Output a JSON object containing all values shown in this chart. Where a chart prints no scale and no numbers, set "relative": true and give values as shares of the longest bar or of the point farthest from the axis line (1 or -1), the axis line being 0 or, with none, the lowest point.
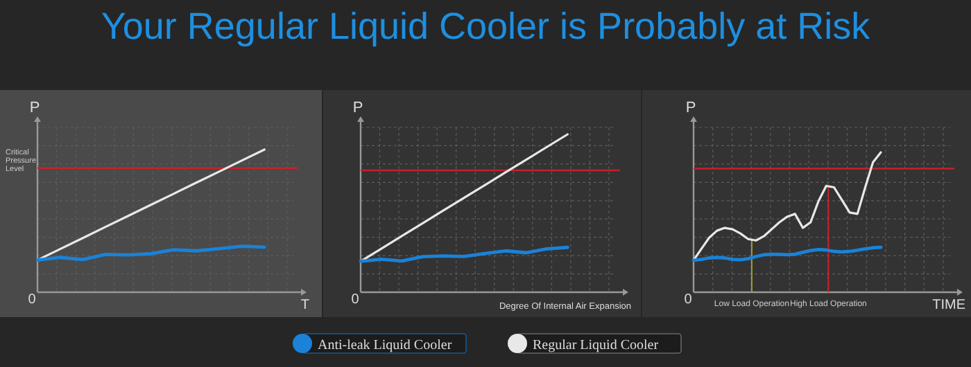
{
  "chart_data": [
    {
      "type": "line",
      "relative": true,
      "ylabel": "P",
      "xlabel": "T",
      "grid": true,
      "legend": false,
      "annotations": [
        "0"
      ],
      "categories": [
        null,
        null,
        null,
        null,
        null,
        null,
        null,
        null,
        null,
        null,
        null,
        null
      ],
      "ref_lines": [
        {
          "axis": "y",
          "value": 0.87,
          "label": "Critical Pressure Level",
          "color": "#c8202a"
        }
      ],
      "series": [
        {
          "color": "#e8e8e8",
          "values": [
            0.225,
            0.303,
            0.38,
            0.458,
            0.535,
            0.613,
            0.69,
            0.768,
            0.845,
            0.923,
            1,
            null
          ]
        },
        {
          "color": "#1a82d8",
          "values": [
            0.225,
            0.244,
            0.229,
            0.265,
            0.262,
            0.27,
            0.298,
            0.29,
            0.305,
            0.322,
            0.316,
            null
          ]
        }
      ]
    },
    {
      "type": "line",
      "relative": true,
      "title": "Your Regular Liquid Cooler is Probably at Risk",
      "ylabel": "P",
      "xlabel": "Degree Of Internal Air Expansion",
      "grid": true,
      "legend": "bottom",
      "annotations": [
        "0"
      ],
      "categories": [
        null,
        null,
        null,
        null,
        null,
        null,
        null,
        null,
        null,
        null,
        null,
        null,
        null
      ],
      "ref_lines": [
        {
          "axis": "y",
          "value": 0.772,
          "color": "#c8202a"
        }
      ],
      "series": [
        {
          "name": "Regular Liquid Cooler",
          "color": "#e8e8e8",
          "values": [
            0.196,
            0.276,
            0.357,
            0.437,
            0.518,
            0.598,
            0.678,
            0.759,
            0.839,
            0.92,
            1,
            null,
            null
          ]
        },
        {
          "name": "Anti-leak Liquid Cooler",
          "color": "#1a82d8",
          "values": [
            0.196,
            0.209,
            0.198,
            0.225,
            0.23,
            0.226,
            0.245,
            0.262,
            0.25,
            0.275,
            0.284,
            null,
            null
          ]
        }
      ]
    },
    {
      "type": "line",
      "relative": true,
      "ylabel": "P",
      "xlabel": "TIME",
      "grid": true,
      "legend": false,
      "annotations": [
        "0",
        "Low Load Operation",
        "High Load Operation"
      ],
      "categories": [
        null,
        null,
        null,
        null,
        null,
        null,
        null,
        null,
        null,
        null,
        null,
        null,
        null,
        null,
        null,
        null,
        null,
        null,
        null,
        null,
        null,
        null,
        null,
        null,
        null,
        null,
        null,
        null,
        null,
        null,
        null,
        null,
        null
      ],
      "ref_lines": [
        {
          "axis": "y",
          "value": 0.884,
          "color": "#c8202a"
        }
      ],
      "series": [
        {
          "color": "#e8e8e8",
          "values": [
            0.228,
            0.31,
            0.39,
            0.44,
            0.46,
            0.45,
            0.42,
            0.38,
            0.37,
            0.4,
            0.45,
            0.5,
            0.54,
            0.56,
            0.46,
            0.5,
            0.65,
            0.76,
            0.75,
            0.66,
            0.57,
            0.56,
            0.75,
            0.93,
            1,
            null,
            null,
            null,
            null,
            null,
            null,
            null,
            null
          ]
        },
        {
          "color": "#1a82d8",
          "values": [
            0.228,
            0.235,
            0.245,
            0.248,
            0.245,
            0.235,
            0.232,
            0.24,
            0.255,
            0.268,
            0.272,
            0.27,
            0.268,
            0.272,
            0.285,
            0.298,
            0.305,
            0.302,
            0.292,
            0.288,
            0.292,
            0.3,
            0.31,
            0.318,
            0.321,
            null,
            null,
            null,
            null,
            null,
            null,
            null,
            null
          ]
        }
      ]
    }
  ]
}
